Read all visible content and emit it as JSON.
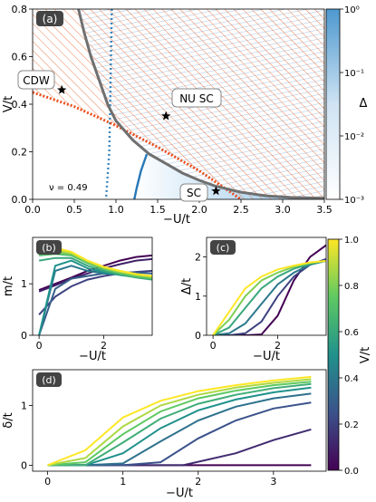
{
  "chart_data": [
    {
      "type": "heatmap",
      "panel": "(a)",
      "xlabel": "−U/t",
      "ylabel": "V/t",
      "xlim": [
        0,
        3.5
      ],
      "ylim": [
        0,
        0.8
      ],
      "xticks": [
        "0.0",
        "0.5",
        "1.0",
        "1.5",
        "2.0",
        "2.5",
        "3.0",
        "3.5"
      ],
      "yticks": [
        "0.0",
        "0.2",
        "0.4",
        "0.6",
        "0.8"
      ],
      "colorbar": {
        "label": "Δ",
        "scale": "log",
        "range": [
          0.001,
          1
        ],
        "ticks": [
          "10⁻³",
          "10⁻²",
          "10⁻¹",
          "10⁰"
        ]
      },
      "regions": [
        "CDW",
        "NU SC",
        "SC"
      ],
      "annotation": "ν = 0.49",
      "stars": [
        {
          "x": 0.35,
          "y": 0.46
        },
        {
          "x": 1.6,
          "y": 0.35
        },
        {
          "x": 2.2,
          "y": 0.035
        }
      ],
      "boundaries": {
        "gray_solid": [
          [
            0.55,
            0.8
          ],
          [
            0.62,
            0.7
          ],
          [
            0.7,
            0.6
          ],
          [
            0.8,
            0.5
          ],
          [
            0.9,
            0.4
          ],
          [
            1.0,
            0.33
          ],
          [
            1.2,
            0.25
          ],
          [
            1.4,
            0.19
          ],
          [
            1.6,
            0.15
          ],
          [
            1.8,
            0.11
          ],
          [
            2.0,
            0.08
          ],
          [
            2.2,
            0.055
          ],
          [
            2.5,
            0.03
          ],
          [
            2.8,
            0.015
          ],
          [
            3.1,
            0.008
          ],
          [
            3.5,
            0.005
          ]
        ],
        "orange_dotted": [
          [
            0.0,
            0.45
          ],
          [
            0.5,
            0.39
          ],
          [
            1.0,
            0.31
          ],
          [
            1.5,
            0.22
          ],
          [
            2.0,
            0.12
          ],
          [
            2.5,
            0.0
          ]
        ],
        "blue_dotted": [
          [
            0.95,
            0.8
          ],
          [
            0.93,
            0.4
          ],
          [
            0.92,
            0.2
          ],
          [
            0.88,
            0.0
          ]
        ],
        "blue_solid": [
          [
            1.37,
            0.19
          ],
          [
            1.3,
            0.12
          ],
          [
            1.25,
            0.05
          ],
          [
            1.22,
            0.0
          ]
        ]
      }
    },
    {
      "type": "line",
      "panel": "(b)",
      "xlabel": "−U/t",
      "ylabel": "m/t",
      "xlim": [
        -0.2,
        3.5
      ],
      "ylim": [
        0,
        1.9
      ],
      "xticks": [
        "0",
        "2"
      ],
      "yticks": [
        "0",
        "1"
      ],
      "series": [
        {
          "V": 0.0,
          "x": [
            0,
            0.5,
            1.0,
            1.5,
            2.0,
            2.5,
            3.0,
            3.5
          ],
          "values": [
            0.88,
            1.0,
            1.12,
            1.25,
            1.35,
            1.45,
            1.52,
            1.55
          ]
        },
        {
          "V": 0.1,
          "x": [
            0,
            0.5,
            1.0,
            1.5,
            2.0,
            2.5,
            3.0,
            3.5
          ],
          "values": [
            0.85,
            0.97,
            1.1,
            1.2,
            1.3,
            1.38,
            1.45,
            1.48
          ]
        },
        {
          "V": 0.2,
          "x": [
            0,
            0.5,
            1.0,
            1.5,
            2.0,
            2.5,
            3.0,
            3.5
          ],
          "values": [
            0.4,
            0.75,
            0.95,
            1.08,
            1.15,
            1.2,
            1.23,
            1.25
          ]
        },
        {
          "V": 0.3,
          "x": [
            0,
            0.5,
            1.0,
            1.5,
            2.0,
            2.5,
            3.0,
            3.5
          ],
          "values": [
            0.0,
            0.9,
            1.1,
            1.15,
            1.2,
            1.22,
            1.22,
            1.2
          ]
        },
        {
          "V": 0.4,
          "x": [
            0,
            0.5,
            1.0,
            1.5,
            2.0,
            2.5,
            3.0,
            3.5
          ],
          "values": [
            0.0,
            1.25,
            1.35,
            1.25,
            1.2,
            1.18,
            1.15,
            1.12
          ]
        },
        {
          "V": 0.5,
          "x": [
            0,
            0.5,
            1.0,
            1.5,
            2.0,
            2.5,
            3.0,
            3.5
          ],
          "values": [
            0.0,
            1.35,
            1.45,
            1.3,
            1.22,
            1.17,
            1.13,
            1.1
          ]
        },
        {
          "V": 0.6,
          "x": [
            0,
            0.5,
            1.0,
            1.5,
            2.0,
            2.5,
            3.0,
            3.5
          ],
          "values": [
            1.45,
            1.5,
            1.5,
            1.35,
            1.25,
            1.18,
            1.12,
            1.08
          ]
        },
        {
          "V": 0.7,
          "x": [
            0,
            0.5,
            1.0,
            1.5,
            2.0,
            2.5,
            3.0,
            3.5
          ],
          "values": [
            1.55,
            1.58,
            1.55,
            1.4,
            1.28,
            1.2,
            1.14,
            1.1
          ]
        },
        {
          "V": 0.8,
          "x": [
            0,
            0.5,
            1.0,
            1.5,
            2.0,
            2.5,
            3.0,
            3.5
          ],
          "values": [
            1.62,
            1.62,
            1.58,
            1.42,
            1.3,
            1.22,
            1.16,
            1.12
          ]
        },
        {
          "V": 0.9,
          "x": [
            0,
            0.5,
            1.0,
            1.5,
            2.0,
            2.5,
            3.0,
            3.5
          ],
          "values": [
            1.68,
            1.66,
            1.6,
            1.44,
            1.32,
            1.24,
            1.18,
            1.14
          ]
        },
        {
          "V": 1.0,
          "x": [
            0,
            0.5,
            1.0,
            1.5,
            2.0,
            2.5,
            3.0,
            3.5
          ],
          "values": [
            1.72,
            1.7,
            1.62,
            1.45,
            1.33,
            1.25,
            1.19,
            1.15
          ]
        }
      ]
    },
    {
      "type": "line",
      "panel": "(c)",
      "xlabel": "−U/t",
      "ylabel": "Δ/t",
      "xlim": [
        -0.2,
        3.5
      ],
      "ylim": [
        0,
        2.5
      ],
      "xticks": [
        "0",
        "2"
      ],
      "yticks": [
        "0",
        "1",
        "2"
      ],
      "series": [
        {
          "V": 0.0,
          "x": [
            0,
            0.5,
            1.0,
            1.5,
            2.0,
            2.5,
            3.0,
            3.5
          ],
          "values": [
            0,
            0,
            0,
            0.02,
            0.5,
            1.4,
            2.0,
            2.3
          ]
        },
        {
          "V": 0.2,
          "x": [
            0,
            0.5,
            1.0,
            1.5,
            2.0,
            2.5,
            3.0,
            3.5
          ],
          "values": [
            0,
            0,
            0.05,
            0.35,
            1.0,
            1.5,
            1.8,
            1.95
          ]
        },
        {
          "V": 0.4,
          "x": [
            0,
            0.5,
            1.0,
            1.5,
            2.0,
            2.5,
            3.0,
            3.5
          ],
          "values": [
            0,
            0.05,
            0.3,
            0.8,
            1.3,
            1.6,
            1.8,
            1.9
          ]
        },
        {
          "V": 0.6,
          "x": [
            0,
            0.5,
            1.0,
            1.5,
            2.0,
            2.5,
            3.0,
            3.5
          ],
          "values": [
            0,
            0.2,
            0.7,
            1.2,
            1.5,
            1.7,
            1.82,
            1.9
          ]
        },
        {
          "V": 0.8,
          "x": [
            0,
            0.5,
            1.0,
            1.5,
            2.0,
            2.5,
            3.0,
            3.5
          ],
          "values": [
            0,
            0.4,
            1.0,
            1.4,
            1.6,
            1.75,
            1.85,
            1.9
          ]
        },
        {
          "V": 1.0,
          "x": [
            0,
            0.5,
            1.0,
            1.5,
            2.0,
            2.5,
            3.0,
            3.5
          ],
          "values": [
            0,
            0.6,
            1.2,
            1.5,
            1.68,
            1.78,
            1.86,
            1.9
          ]
        }
      ]
    },
    {
      "type": "line",
      "panel": "(d)",
      "xlabel": "−U/t",
      "ylabel": "δ/t",
      "xlim": [
        -0.2,
        3.7
      ],
      "ylim": [
        -0.1,
        1.6
      ],
      "xticks": [
        "0",
        "1",
        "2",
        "3"
      ],
      "yticks": [
        "0",
        "1"
      ],
      "series": [
        {
          "V": 0.0,
          "x": [
            0,
            0.5,
            1.0,
            1.5,
            2.0,
            2.5,
            3.0,
            3.5
          ],
          "values": [
            0,
            0,
            0,
            0,
            0,
            0,
            0,
            0
          ]
        },
        {
          "V": 0.1,
          "x": [
            0,
            0.5,
            1.0,
            1.5,
            1.8,
            2.5,
            3.0,
            3.5
          ],
          "values": [
            0,
            0,
            0,
            0,
            0,
            0.2,
            0.42,
            0.6
          ]
        },
        {
          "V": 0.2,
          "x": [
            0,
            0.5,
            1.0,
            1.5,
            2.0,
            2.5,
            3.0,
            3.5
          ],
          "values": [
            0,
            0,
            0,
            0.05,
            0.45,
            0.75,
            0.95,
            1.05
          ]
        },
        {
          "V": 0.3,
          "x": [
            0,
            0.5,
            1.0,
            1.5,
            2.0,
            2.5,
            3.0,
            3.5
          ],
          "values": [
            0,
            0,
            0.03,
            0.4,
            0.75,
            0.98,
            1.12,
            1.2
          ]
        },
        {
          "V": 0.4,
          "x": [
            0,
            0.5,
            1.0,
            1.5,
            2.0,
            2.5,
            3.0,
            3.5
          ],
          "values": [
            0,
            0,
            0.2,
            0.62,
            0.92,
            1.1,
            1.22,
            1.3
          ]
        },
        {
          "V": 0.5,
          "x": [
            0,
            0.5,
            1.0,
            1.5,
            2.0,
            2.5,
            3.0,
            3.5
          ],
          "values": [
            0,
            0,
            0.38,
            0.78,
            1.03,
            1.18,
            1.29,
            1.36
          ]
        },
        {
          "V": 0.6,
          "x": [
            0,
            0.5,
            1.0,
            1.5,
            2.0,
            2.5,
            3.0,
            3.5
          ],
          "values": [
            0,
            0.05,
            0.52,
            0.9,
            1.12,
            1.25,
            1.34,
            1.4
          ]
        },
        {
          "V": 0.7,
          "x": [
            0,
            0.5,
            1.0,
            1.5,
            2.0,
            2.5,
            3.0,
            3.5
          ],
          "values": [
            0,
            0.12,
            0.65,
            1.0,
            1.18,
            1.3,
            1.38,
            1.44
          ]
        },
        {
          "V": 0.8,
          "x": [
            0,
            0.5,
            1.0,
            1.5,
            2.0,
            2.5,
            3.0,
            3.5
          ],
          "values": [
            0,
            0.25,
            0.8,
            1.08,
            1.24,
            1.34,
            1.42,
            1.48
          ]
        }
      ]
    }
  ],
  "colorbar_v": {
    "label": "V/t",
    "range": [
      0,
      1
    ],
    "ticks": [
      "0.0",
      "0.2",
      "0.4",
      "0.6",
      "0.8",
      "1.0"
    ]
  }
}
